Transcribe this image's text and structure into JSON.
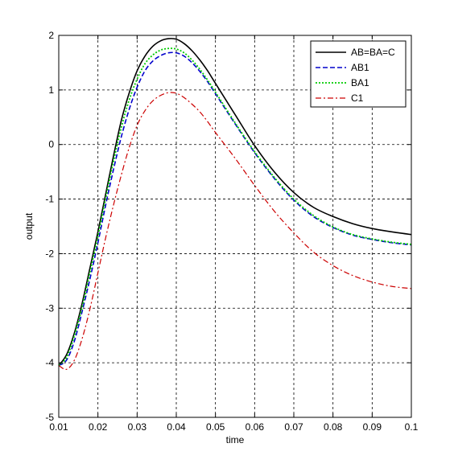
{
  "chart_data": {
    "type": "line",
    "xlabel": "time",
    "ylabel": "output",
    "xlim": [
      0.01,
      0.1
    ],
    "ylim": [
      -5,
      2
    ],
    "x_ticks": [
      "0.01",
      "0.02",
      "0.03",
      "0.04",
      "0.05",
      "0.06",
      "0.07",
      "0.08",
      "0.09",
      "0.1"
    ],
    "y_ticks": [
      "-5",
      "-4",
      "-3",
      "-2",
      "-1",
      "0",
      "1",
      "2"
    ],
    "grid": true,
    "legend_position": "top-right",
    "series": [
      {
        "name": "AB=BA=C",
        "color": "#000000",
        "style": "solid",
        "x": [
          0.01,
          0.012,
          0.014,
          0.016,
          0.018,
          0.02,
          0.022,
          0.024,
          0.026,
          0.028,
          0.03,
          0.032,
          0.034,
          0.036,
          0.038,
          0.04,
          0.042,
          0.044,
          0.046,
          0.048,
          0.05,
          0.055,
          0.06,
          0.065,
          0.07,
          0.075,
          0.08,
          0.085,
          0.09,
          0.095,
          0.1
        ],
        "y": [
          -4.05,
          -3.85,
          -3.45,
          -2.9,
          -2.25,
          -1.6,
          -0.9,
          -0.2,
          0.45,
          0.95,
          1.35,
          1.62,
          1.8,
          1.9,
          1.94,
          1.93,
          1.85,
          1.72,
          1.55,
          1.35,
          1.12,
          0.55,
          -0.02,
          -0.5,
          -0.88,
          -1.15,
          -1.32,
          -1.45,
          -1.54,
          -1.6,
          -1.65
        ]
      },
      {
        "name": "AB1",
        "color": "#0000cc",
        "style": "dashed",
        "x": [
          0.01,
          0.012,
          0.014,
          0.016,
          0.018,
          0.02,
          0.022,
          0.024,
          0.026,
          0.028,
          0.03,
          0.032,
          0.034,
          0.036,
          0.038,
          0.04,
          0.042,
          0.044,
          0.046,
          0.048,
          0.05,
          0.055,
          0.06,
          0.065,
          0.07,
          0.075,
          0.08,
          0.085,
          0.09,
          0.095,
          0.1
        ],
        "y": [
          -4.05,
          -3.95,
          -3.6,
          -3.05,
          -2.45,
          -1.8,
          -1.1,
          -0.45,
          0.15,
          0.65,
          1.05,
          1.35,
          1.53,
          1.63,
          1.68,
          1.68,
          1.62,
          1.5,
          1.34,
          1.15,
          0.93,
          0.38,
          -0.15,
          -0.62,
          -1.02,
          -1.32,
          -1.52,
          -1.66,
          -1.74,
          -1.8,
          -1.84
        ]
      },
      {
        "name": "BA1",
        "color": "#00cc00",
        "style": "dotted",
        "x": [
          0.01,
          0.012,
          0.014,
          0.016,
          0.018,
          0.02,
          0.022,
          0.024,
          0.026,
          0.028,
          0.03,
          0.032,
          0.034,
          0.036,
          0.038,
          0.04,
          0.042,
          0.044,
          0.046,
          0.048,
          0.05,
          0.055,
          0.06,
          0.065,
          0.07,
          0.075,
          0.08,
          0.085,
          0.09,
          0.095,
          0.1
        ],
        "y": [
          -4.05,
          -3.9,
          -3.5,
          -2.97,
          -2.33,
          -1.68,
          -0.98,
          -0.3,
          0.32,
          0.82,
          1.2,
          1.48,
          1.64,
          1.73,
          1.76,
          1.75,
          1.68,
          1.55,
          1.38,
          1.18,
          0.96,
          0.4,
          -0.13,
          -0.6,
          -1.0,
          -1.3,
          -1.51,
          -1.65,
          -1.73,
          -1.79,
          -1.83
        ]
      },
      {
        "name": "C1",
        "color": "#cc0000",
        "style": "dashdot",
        "x": [
          0.01,
          0.012,
          0.014,
          0.016,
          0.018,
          0.02,
          0.022,
          0.024,
          0.026,
          0.028,
          0.03,
          0.032,
          0.034,
          0.036,
          0.038,
          0.04,
          0.042,
          0.044,
          0.046,
          0.048,
          0.05,
          0.055,
          0.06,
          0.065,
          0.07,
          0.075,
          0.08,
          0.085,
          0.09,
          0.095,
          0.1
        ],
        "y": [
          -4.05,
          -4.12,
          -3.95,
          -3.55,
          -3.0,
          -2.35,
          -1.7,
          -1.1,
          -0.55,
          -0.05,
          0.35,
          0.62,
          0.8,
          0.9,
          0.95,
          0.94,
          0.86,
          0.74,
          0.6,
          0.42,
          0.22,
          -0.25,
          -0.75,
          -1.22,
          -1.62,
          -1.97,
          -2.22,
          -2.4,
          -2.52,
          -2.6,
          -2.64
        ]
      }
    ]
  }
}
